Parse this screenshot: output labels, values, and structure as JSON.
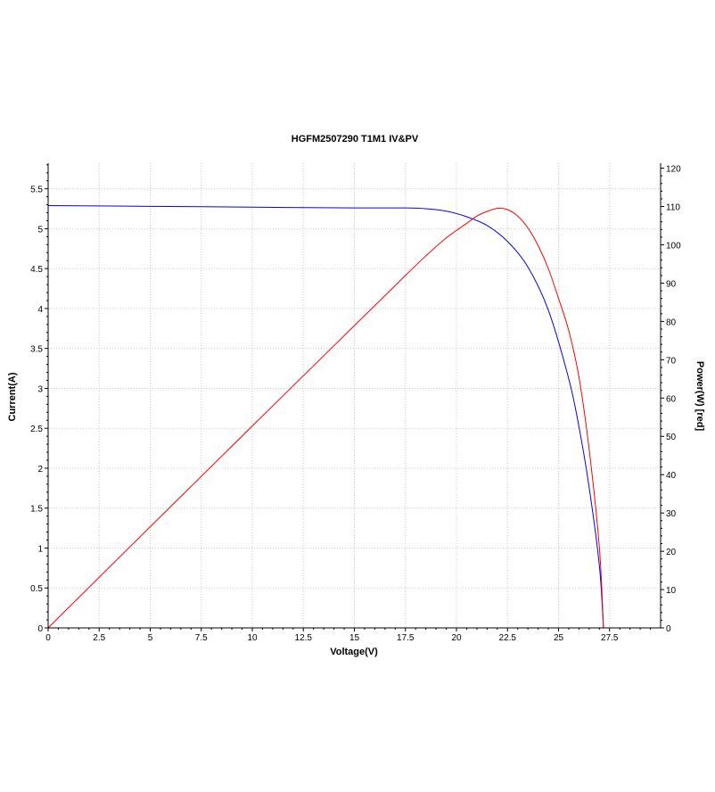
{
  "chart_data": {
    "type": "line",
    "title": "HGFM2507290 T1M1 IV&PV",
    "xlabel": "Voltage(V)",
    "ylabel": "Current(A)",
    "y2label": "Power(W) [red]",
    "xlim": [
      0,
      30
    ],
    "ylim": [
      0,
      5.82
    ],
    "y2lim": [
      0,
      121.3
    ],
    "grid": true,
    "x_ticks": [
      "0",
      "2.5",
      "5",
      "7.5",
      "10",
      "12.5",
      "15",
      "17.5",
      "20",
      "22.5",
      "25",
      "27.5"
    ],
    "y_ticks": [
      "0",
      "0.5",
      "1",
      "1.5",
      "2",
      "2.5",
      "3",
      "3.5",
      "4",
      "4.5",
      "5",
      "5.5"
    ],
    "y2_ticks": [
      "0",
      "10",
      "20",
      "30",
      "40",
      "50",
      "60",
      "70",
      "80",
      "90",
      "100",
      "110",
      "120"
    ],
    "series": [
      {
        "name": "Current",
        "axis": "left",
        "color": "#0000ff",
        "x": [
          0,
          5,
          10,
          15,
          17.5,
          18.5,
          19.5,
          20.5,
          21.5,
          22.5,
          23.5,
          24.5,
          25.5,
          26,
          26.5,
          27,
          27.2
        ],
        "y": [
          5.29,
          5.28,
          5.27,
          5.26,
          5.26,
          5.25,
          5.22,
          5.15,
          5.04,
          4.84,
          4.52,
          3.98,
          3.12,
          2.52,
          1.76,
          0.78,
          0
        ]
      },
      {
        "name": "Power",
        "axis": "right",
        "color": "#ff0000",
        "x": [
          0,
          5,
          10,
          15,
          17.5,
          18.5,
          19.5,
          20.5,
          21,
          21.5,
          22,
          22.5,
          23,
          23.5,
          24,
          24.5,
          25,
          25.5,
          26,
          26.5,
          27,
          27.2
        ],
        "y": [
          0,
          26.4,
          52.7,
          78.9,
          92.0,
          97.1,
          101.8,
          105.6,
          107.5,
          108.7,
          109.5,
          109.2,
          107.5,
          104.4,
          99.8,
          93.8,
          86.0,
          77.6,
          65.5,
          46.6,
          21.0,
          0
        ]
      }
    ]
  }
}
